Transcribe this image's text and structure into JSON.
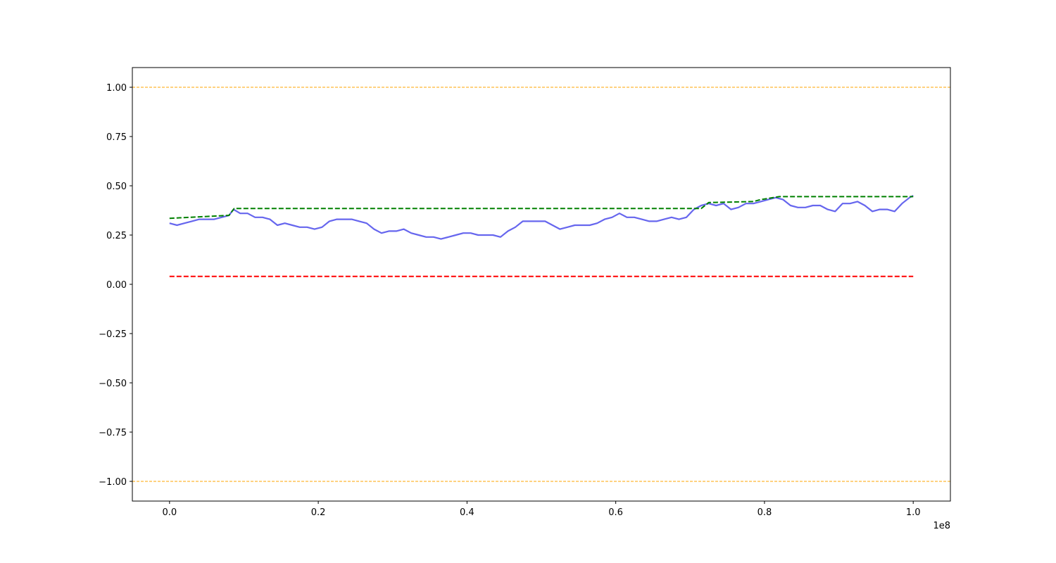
{
  "chart_data": {
    "type": "line",
    "title": "",
    "xlabel": "",
    "ylabel": "",
    "x_offset_label": "1e8",
    "xlim": [
      -5000000,
      105000000
    ],
    "ylim": [
      -1.1,
      1.1
    ],
    "grid": false,
    "x_ticks": [
      0,
      20000000,
      40000000,
      60000000,
      80000000,
      100000000
    ],
    "x_tick_labels": [
      "0.0",
      "0.2",
      "0.4",
      "0.6",
      "0.8",
      "1.0"
    ],
    "y_ticks": [
      1.0,
      0.75,
      0.5,
      0.25,
      0.0,
      -0.25,
      -0.5,
      -0.75,
      -1.0
    ],
    "y_tick_labels": [
      "1.00",
      "0.75",
      "0.50",
      "0.25",
      "0.00",
      "−0.25",
      "−0.50",
      "−0.75",
      "−1.00"
    ],
    "colors": {
      "main": "#6666ee",
      "running_max": "#008000",
      "baseline": "#ff0000",
      "bounds": "#ffa500"
    },
    "series": [
      {
        "style": "solid",
        "color": "#6666ee",
        "x": [
          0,
          1000000,
          2000000,
          3000000,
          4000000,
          5000000,
          6000000,
          7000000,
          8000000,
          8600000,
          9500000,
          10500000,
          11500000,
          12500000,
          13500000,
          14500000,
          15500000,
          16500000,
          17500000,
          18500000,
          19500000,
          20500000,
          21500000,
          22500000,
          23500000,
          24500000,
          25500000,
          26500000,
          27500000,
          28500000,
          29500000,
          30500000,
          31500000,
          32500000,
          33500000,
          34500000,
          35500000,
          36500000,
          37500000,
          38500000,
          39500000,
          40500000,
          41500000,
          42500000,
          43500000,
          44500000,
          45500000,
          46500000,
          47500000,
          48500000,
          49500000,
          50500000,
          51500000,
          52500000,
          53500000,
          54500000,
          55500000,
          56500000,
          57500000,
          58500000,
          59500000,
          60500000,
          61500000,
          62500000,
          63500000,
          64500000,
          65500000,
          66500000,
          67500000,
          68500000,
          69500000,
          70500000,
          71500000,
          72500000,
          73500000,
          74500000,
          75500000,
          76500000,
          77500000,
          78500000,
          79500000,
          80500000,
          81500000,
          82500000,
          83500000,
          84500000,
          85500000,
          86500000,
          87500000,
          88500000,
          89500000,
          90500000,
          91500000,
          92500000,
          93500000,
          94500000,
          95500000,
          96500000,
          97500000,
          98500000,
          99500000,
          100000000
        ],
        "y": [
          0.31,
          0.3,
          0.31,
          0.32,
          0.33,
          0.33,
          0.33,
          0.34,
          0.35,
          0.38,
          0.36,
          0.36,
          0.34,
          0.34,
          0.33,
          0.3,
          0.31,
          0.3,
          0.29,
          0.29,
          0.28,
          0.29,
          0.32,
          0.33,
          0.33,
          0.33,
          0.32,
          0.31,
          0.28,
          0.26,
          0.27,
          0.27,
          0.28,
          0.26,
          0.25,
          0.24,
          0.24,
          0.23,
          0.24,
          0.25,
          0.26,
          0.26,
          0.25,
          0.25,
          0.25,
          0.24,
          0.27,
          0.29,
          0.32,
          0.32,
          0.32,
          0.32,
          0.3,
          0.28,
          0.29,
          0.3,
          0.3,
          0.3,
          0.31,
          0.33,
          0.34,
          0.36,
          0.34,
          0.34,
          0.33,
          0.32,
          0.32,
          0.33,
          0.34,
          0.33,
          0.34,
          0.38,
          0.4,
          0.41,
          0.4,
          0.41,
          0.38,
          0.39,
          0.41,
          0.41,
          0.42,
          0.43,
          0.44,
          0.43,
          0.4,
          0.39,
          0.39,
          0.4,
          0.4,
          0.38,
          0.37,
          0.41,
          0.41,
          0.42,
          0.4,
          0.37,
          0.38,
          0.38,
          0.37,
          0.41,
          0.44,
          0.45
        ]
      },
      {
        "style": "dashed",
        "color": "#008000",
        "x": [
          0,
          8000000,
          8700000,
          71500000,
          72500000,
          78500000,
          79500000,
          82000000,
          100000000
        ],
        "y": [
          0.335,
          0.35,
          0.385,
          0.385,
          0.415,
          0.42,
          0.43,
          0.445,
          0.445
        ]
      },
      {
        "style": "dashed",
        "color": "#ff0000",
        "x": [
          0,
          100000000
        ],
        "y": [
          0.04,
          0.04
        ]
      }
    ],
    "hlines": [
      {
        "y": 1.0,
        "color": "#ffa500",
        "style": "dashed"
      },
      {
        "y": -1.0,
        "color": "#ffa500",
        "style": "dashed"
      }
    ]
  }
}
